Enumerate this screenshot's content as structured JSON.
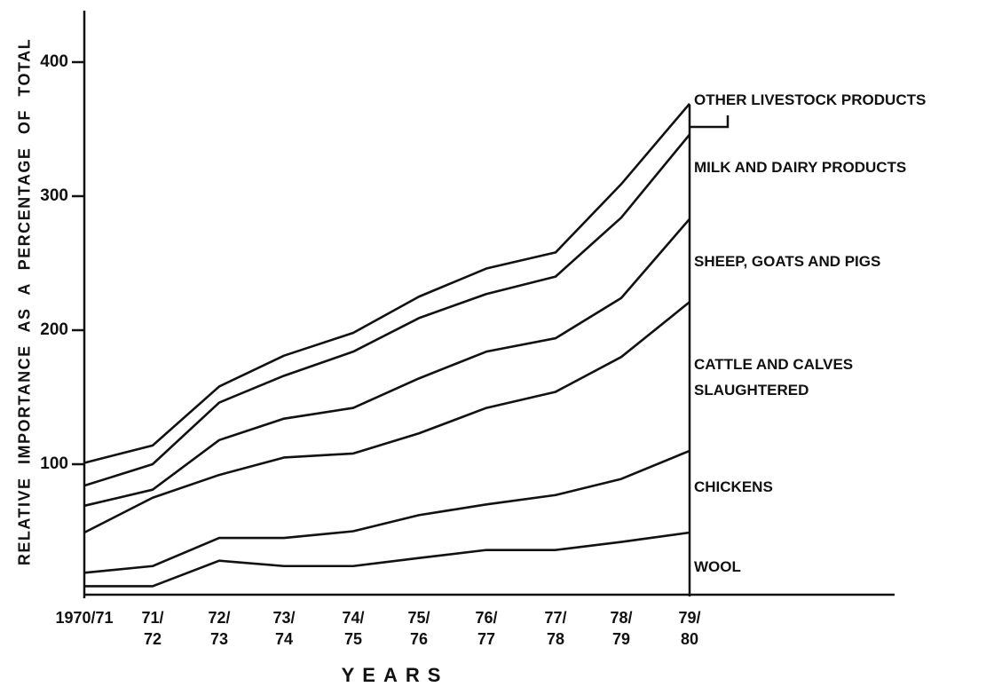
{
  "chart_data": {
    "type": "line",
    "x_label": "YEARS",
    "y_label": "RELATIVE IMPORTANCE AS A PERCENTAGE OF TOTAL",
    "categories": [
      "1970/71",
      "71/\n72",
      "72/\n73",
      "73/\n74",
      "74/\n75",
      "75/\n76",
      "76/\n77",
      "77/\n78",
      "78/\n79",
      "79/\n80"
    ],
    "stacked": true,
    "series": [
      {
        "name": "WOOL",
        "color": "#111111",
        "values": [
          9,
          9,
          28,
          24,
          24,
          30,
          36,
          36,
          42,
          49
        ]
      },
      {
        "name": "CHICKENS",
        "color": "#111111",
        "values": [
          10,
          15,
          17,
          21,
          26,
          32,
          34,
          41,
          47,
          61
        ]
      },
      {
        "name": "CATTLE AND CALVES\nSLAUGHTERED",
        "color": "#111111",
        "values": [
          30,
          51,
          47,
          60,
          58,
          61,
          72,
          77,
          91,
          111
        ]
      },
      {
        "name": "SHEEP, GOATS AND PIGS",
        "color": "#111111",
        "values": [
          20,
          6,
          26,
          29,
          34,
          41,
          42,
          40,
          44,
          62
        ]
      },
      {
        "name": "MILK AND DAIRY PRODUCTS",
        "color": "#111111",
        "values": [
          15,
          19,
          28,
          32,
          42,
          45,
          43,
          46,
          60,
          63
        ]
      },
      {
        "name": "OTHER LIVESTOCK PRODUCTS",
        "color": "#111111",
        "values": [
          17,
          14,
          12,
          15,
          14,
          16,
          19,
          18,
          25,
          23
        ]
      }
    ],
    "ylim": [
      0,
      440
    ],
    "yticks": [
      100,
      200,
      300,
      400
    ],
    "grid": false
  }
}
